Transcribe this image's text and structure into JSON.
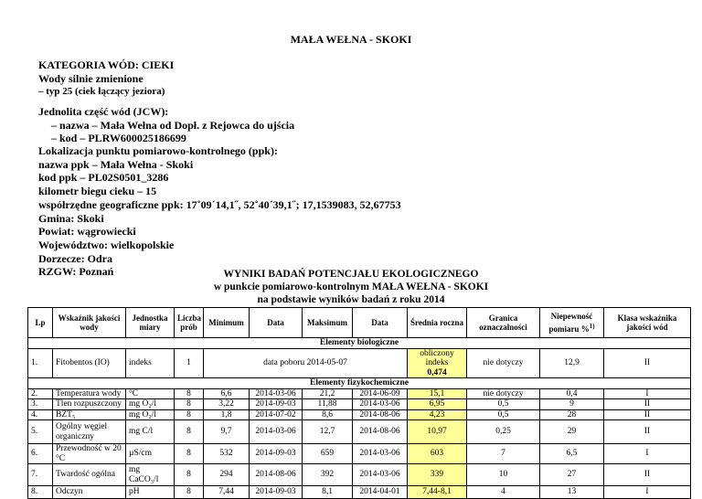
{
  "header": {
    "title": "MAŁA WEŁNA - SKOKI"
  },
  "category": {
    "title": "KATEGORIA WÓD: CIEKI",
    "subtitle": "Wody silnie zmienione",
    "type": "– typ 25 (ciek łączący jeziora)"
  },
  "jcw": {
    "heading": "Jednolita część wód (JCW):",
    "name": "– nazwa – Mała Wełna od Dopł. z Rejowca do ujścia",
    "code": "– kod – PLRW600025186699"
  },
  "location": {
    "heading": "Lokalizacja punktu pomiarowo-kontrolnego (ppk):",
    "lines": [
      "nazwa ppk – Mała Wełna - Skoki",
      "kod ppk – PL02S0501_3286",
      "kilometr biegu cieku – 15",
      "współrzędne geograficzne ppk: 17˚09´14,1˝, 52˚40´39,1˝; 17,1539083, 52,67753",
      "Gmina: Skoki",
      "Powiat: wągrowiecki",
      "Województwo: wielkopolskie",
      "Dorzecze: Odra",
      "RZGW: Poznań"
    ]
  },
  "table": {
    "title_lines": [
      "WYNIKI BADAŃ POTENCJAŁU EKOLOGICZNEGO",
      "w punkcie pomiarowo-kontrolnym MAŁA WEŁNA - SKOKI",
      "na podstawie wyników badań z roku 2014"
    ],
    "columns": [
      "Lp",
      "Wskaźnik jakości wody",
      "Jednostka miary",
      "Liczba prób",
      "Minimum",
      "Data",
      "Maksimum",
      "Data",
      "Średnia roczna",
      "Granica oznaczalności",
      {
        "text": "Niepewność pomiaru %",
        "sup": "1)"
      },
      "Klasa wskaźnika jakości wód"
    ],
    "sections": [
      {
        "label": "Elementy biologiczne",
        "rows": [
          {
            "lp": "1.",
            "name": "Fitobentos (IO)",
            "unit": "indeks",
            "n": "1",
            "sampling": "data poboru 2014-05-07",
            "mean_label": "obliczony indeks",
            "mean": "0,474",
            "loq": "nie dotyczy",
            "unc": "12,9",
            "cls": "II"
          }
        ]
      },
      {
        "label": "Elementy fizykochemiczne",
        "rows": [
          {
            "lp": "2.",
            "name": "Temperatura wody",
            "unit": "°C",
            "n": "8",
            "min": "6,6",
            "min_date": "2014-03-06",
            "max": "21,2",
            "max_date": "2014-06-09",
            "mean": "15,1",
            "loq": "nie dotyczy",
            "unc": "0,4",
            "cls": "I"
          },
          {
            "lp": "3.",
            "name": "Tlen rozpuszczony",
            "unit": "mg O₂/l",
            "n": "8",
            "min": "3,22",
            "min_date": "2014-09-03",
            "max": "11,88",
            "max_date": "2014-03-06",
            "mean": "6,95",
            "loq": "0,5",
            "unc": "9",
            "cls": "II"
          },
          {
            "lp": "4.",
            "name": "BZT₅",
            "unit": "mg O₂/l",
            "n": "8",
            "min": "1,8",
            "min_date": "2014-07-02",
            "max": "8,6",
            "max_date": "2014-08-06",
            "mean": "4,23",
            "loq": "0,5",
            "unc": "28",
            "cls": "II"
          },
          {
            "lp": "5.",
            "name": "Ogólny węgiel organiczny",
            "unit": "mg C/l",
            "n": "8",
            "min": "9,7",
            "min_date": "2014-03-06",
            "max": "12,7",
            "max_date": "2014-08-06",
            "mean": "10,97",
            "loq": "0,25",
            "unc": "29",
            "cls": "II"
          },
          {
            "lp": "6.",
            "name": "Przewodność w 20 °C",
            "unit": "µS/cm",
            "n": "8",
            "min": "532",
            "min_date": "2014-09-03",
            "max": "659",
            "max_date": "2014-03-06",
            "mean": "603",
            "loq": "7",
            "unc": "6,5",
            "cls": "I"
          },
          {
            "lp": "7.",
            "name": "Twardość ogólna",
            "unit": "mg CaCO₃/l",
            "n": "8",
            "min": "294",
            "min_date": "2014-08-06",
            "max": "392",
            "max_date": "2014-03-06",
            "mean": "339",
            "loq": "10",
            "unc": "27",
            "cls": "II"
          },
          {
            "lp": "8.",
            "name": "Odczyn",
            "unit": "pH",
            "n": "8",
            "min": "7,44",
            "min_date": "2014-09-03",
            "max": "8,1",
            "max_date": "2014-04-01",
            "mean": "7,44-8,1",
            "loq": "4",
            "unc": "13",
            "cls": "I"
          }
        ]
      }
    ]
  }
}
